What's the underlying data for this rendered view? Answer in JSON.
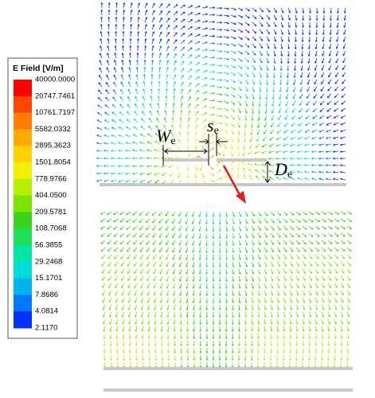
{
  "legend": {
    "title": "E Field [V/m]",
    "labels": [
      "40000.0000",
      "20747.7461",
      "10761.7197",
      "5582.0332",
      "2895.3623",
      "1501.8054",
      "778.9766",
      "404.0500",
      "209.5781",
      "108.7068",
      "56.3855",
      "29.2468",
      "15.1701",
      "7.8686",
      "4.0814",
      "2.1170"
    ],
    "colors": [
      "#ff0000",
      "#ff4600",
      "#ff7d00",
      "#ffaa00",
      "#ffd200",
      "#f0f000",
      "#b4f000",
      "#78e600",
      "#3cd21e",
      "#1ee15a",
      "#00e6a0",
      "#00dcdc",
      "#00b4f0",
      "#0078ff",
      "#0032ff"
    ]
  },
  "annotations": [
    {
      "main": "W",
      "sub": "e"
    },
    {
      "main": "s",
      "sub": "e"
    },
    {
      "main": "D",
      "sub": "e"
    }
  ]
}
